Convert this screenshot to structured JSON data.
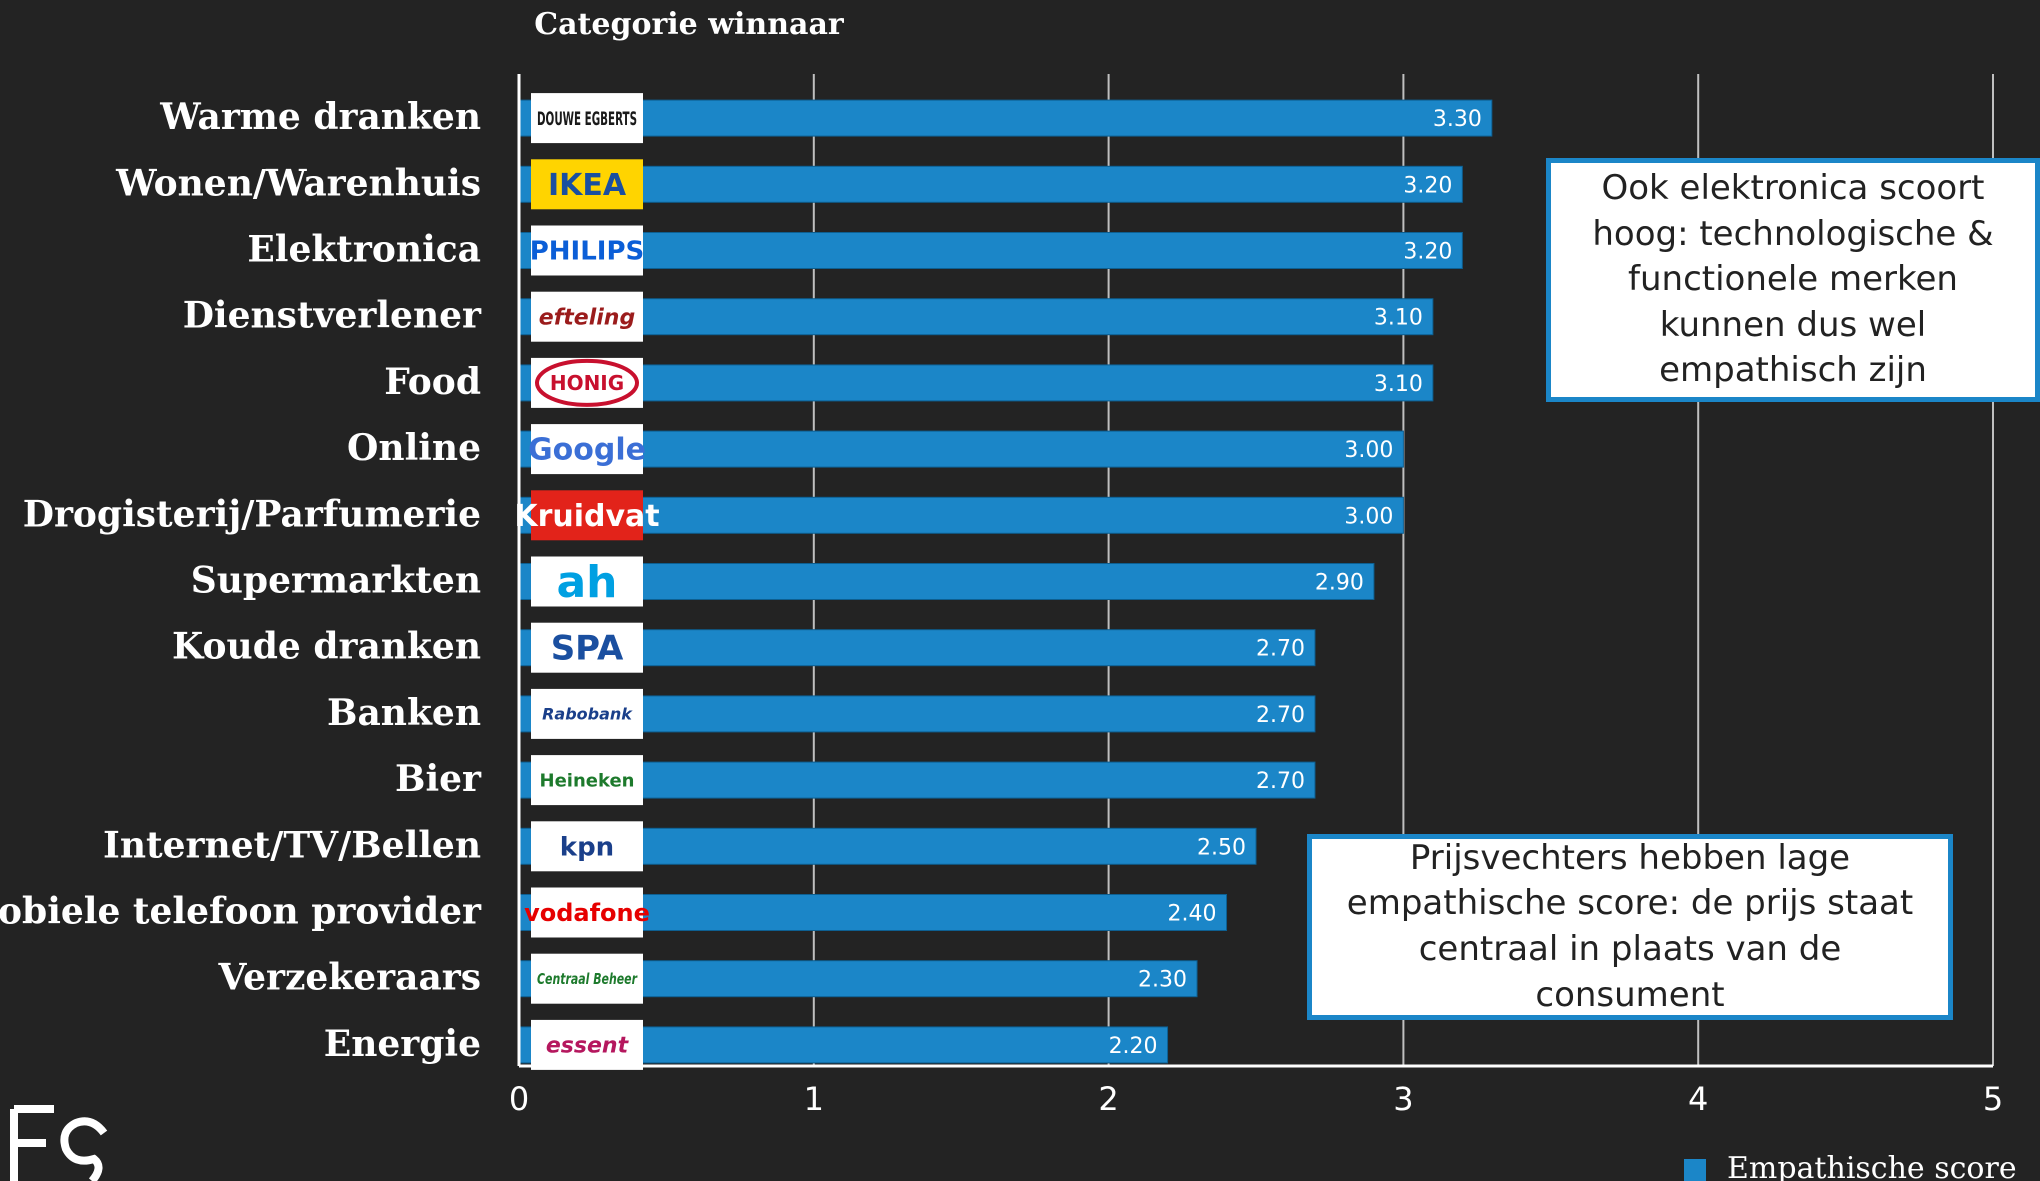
{
  "chart_data": {
    "type": "bar",
    "orientation": "horizontal",
    "column_header": "Categorie winnaar",
    "categories": [
      "Warme dranken",
      "Wonen/Warenhuis",
      "Elektronica",
      "Dienstverlener",
      "Food",
      "Online",
      "Drogisterij/Parfumerie",
      "Supermarkten",
      "Koude dranken",
      "Banken",
      "Bier",
      "Internet/TV/Bellen",
      "Mobiele telefoon provider",
      "Verzekeraars",
      "Energie"
    ],
    "values": [
      3.3,
      3.2,
      3.2,
      3.1,
      3.1,
      3.0,
      3.0,
      2.9,
      2.7,
      2.7,
      2.7,
      2.5,
      2.4,
      2.3,
      2.2
    ],
    "value_labels": [
      "3.30",
      "3.20",
      "3.20",
      "3.10",
      "3.10",
      "3.00",
      "3.00",
      "2.90",
      "2.70",
      "2.70",
      "2.70",
      "2.50",
      "2.40",
      "2.30",
      "2.20"
    ],
    "winner_logos": [
      "DOUWE EGBERTS",
      "IKEA",
      "PHILIPS",
      "efteling",
      "HONIG",
      "Google",
      "Kruidvat",
      "ah",
      "SPA",
      "Rabobank",
      "Heineken",
      "kpn",
      "vodafone",
      "Centraal Beheer",
      "essent"
    ],
    "series": [
      {
        "name": "Empathische score",
        "color": "#1b86c8"
      }
    ],
    "xlim": [
      0,
      5
    ],
    "x_ticks": [
      "0",
      "1",
      "2",
      "3",
      "4",
      "5"
    ],
    "grid": true,
    "legend_position": "bottom-right"
  },
  "callouts": [
    "Ook elektronica scoort hoog: technologische & functionele merken kunnen dus wel empathisch zijn",
    "Prijsvechters hebben lage empathische score: de prijs staat centraal in plaats van de consument"
  ],
  "brand_mark": "FC",
  "colors": {
    "background": "#232323",
    "bar": "#1b86c8",
    "gridline": "#bfbfbf",
    "callout_border": "#1b86c8"
  }
}
